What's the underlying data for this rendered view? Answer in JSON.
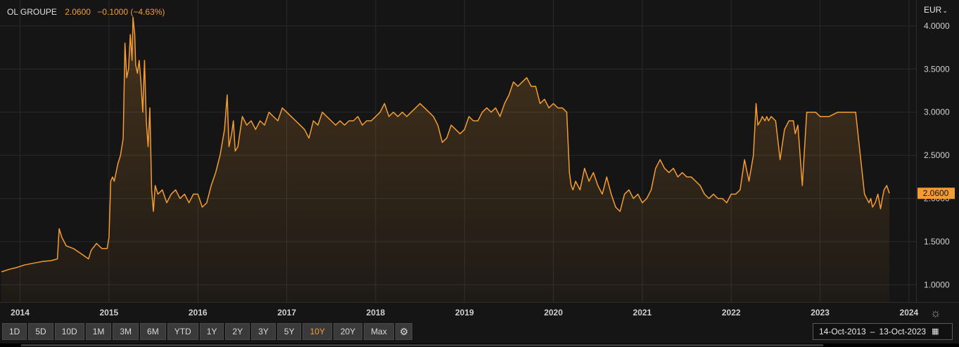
{
  "header": {
    "name": "OL GROUPE",
    "last": "2.0600",
    "change": "−0.1000 (−4.63%)"
  },
  "currency": "EUR",
  "toolbar": {
    "ranges": [
      "1D",
      "5D",
      "10D",
      "1M",
      "3M",
      "6M",
      "YTD",
      "1Y",
      "2Y",
      "3Y",
      "5Y",
      "10Y",
      "20Y",
      "Max"
    ],
    "active": "10Y"
  },
  "date_range": {
    "from": "14-Oct-2013",
    "separator": "–",
    "to": "13-Oct-2023"
  },
  "icons": {
    "settings": "gear-icon",
    "calendar": "calendar-icon",
    "currency_dropdown": "chevron-down-icon",
    "brightness": "sun-icon"
  },
  "colors": {
    "line": "#f39c35",
    "background": "#151515",
    "text": "#d0d0d0"
  },
  "chart_data": {
    "type": "area",
    "title": "",
    "xlabel": "",
    "ylabel": "",
    "grid": true,
    "xlim": [
      2013.79,
      2024.08
    ],
    "ylim": [
      0.8,
      4.3
    ],
    "x_ticks": [
      "2014",
      "2015",
      "2016",
      "2017",
      "2018",
      "2019",
      "2020",
      "2021",
      "2022",
      "2023",
      "2024"
    ],
    "y_ticks": [
      "1.0000",
      "1.5000",
      "2.0000",
      "2.5000",
      "3.0000",
      "3.5000",
      "4.0000"
    ],
    "last_value_label": "2.0600",
    "series": [
      {
        "x": [
          2013.79,
          2013.88,
          2013.96,
          2014.05,
          2014.15,
          2014.25,
          2014.35,
          2014.42,
          2014.44,
          2014.47,
          2014.52,
          2014.6,
          2014.7,
          2014.77,
          2014.8,
          2014.86,
          2014.92,
          2014.98,
          2015.0,
          2015.02,
          2015.04,
          2015.06,
          2015.1,
          2015.13,
          2015.16,
          2015.18,
          2015.2,
          2015.22,
          2015.24,
          2015.26,
          2015.27,
          2015.29,
          2015.3,
          2015.32,
          2015.34,
          2015.36,
          2015.38,
          2015.39,
          2015.4,
          2015.42,
          2015.44,
          2015.46,
          2015.48,
          2015.5,
          2015.52,
          2015.55,
          2015.6,
          2015.65,
          2015.7,
          2015.75,
          2015.8,
          2015.85,
          2015.9,
          2015.95,
          2016.0,
          2016.05,
          2016.1,
          2016.15,
          2016.2,
          2016.25,
          2016.3,
          2016.33,
          2016.35,
          2016.38,
          2016.4,
          2016.42,
          2016.45,
          2016.5,
          2016.55,
          2016.6,
          2016.65,
          2016.7,
          2016.75,
          2016.8,
          2016.85,
          2016.9,
          2016.95,
          2017.0,
          2017.05,
          2017.1,
          2017.15,
          2017.2,
          2017.25,
          2017.3,
          2017.35,
          2017.4,
          2017.45,
          2017.5,
          2017.55,
          2017.6,
          2017.65,
          2017.7,
          2017.75,
          2017.8,
          2017.85,
          2017.9,
          2017.95,
          2018.0,
          2018.05,
          2018.1,
          2018.15,
          2018.2,
          2018.25,
          2018.3,
          2018.35,
          2018.4,
          2018.45,
          2018.5,
          2018.55,
          2018.6,
          2018.65,
          2018.7,
          2018.75,
          2018.8,
          2018.85,
          2018.9,
          2018.95,
          2019.0,
          2019.05,
          2019.1,
          2019.15,
          2019.2,
          2019.25,
          2019.3,
          2019.35,
          2019.4,
          2019.45,
          2019.5,
          2019.55,
          2019.6,
          2019.65,
          2019.7,
          2019.75,
          2019.8,
          2019.85,
          2019.9,
          2019.95,
          2020.0,
          2020.05,
          2020.1,
          2020.15,
          2020.18,
          2020.2,
          2020.22,
          2020.25,
          2020.3,
          2020.35,
          2020.4,
          2020.45,
          2020.5,
          2020.55,
          2020.6,
          2020.65,
          2020.7,
          2020.75,
          2020.8,
          2020.85,
          2020.9,
          2020.95,
          2021.0,
          2021.05,
          2021.1,
          2021.15,
          2021.2,
          2021.25,
          2021.3,
          2021.35,
          2021.4,
          2021.45,
          2021.5,
          2021.55,
          2021.6,
          2021.65,
          2021.7,
          2021.75,
          2021.8,
          2021.85,
          2021.9,
          2021.95,
          2022.0,
          2022.05,
          2022.1,
          2022.15,
          2022.2,
          2022.25,
          2022.28,
          2022.3,
          2022.33,
          2022.35,
          2022.38,
          2022.4,
          2022.42,
          2022.45,
          2022.5,
          2022.55,
          2022.6,
          2022.65,
          2022.7,
          2022.72,
          2022.75,
          2022.8,
          2022.85,
          2022.88,
          2022.9,
          2022.92,
          2022.95,
          2023.0,
          2023.1,
          2023.2,
          2023.3,
          2023.4,
          2023.5,
          2023.55,
          2023.57,
          2023.59,
          2023.62,
          2023.65,
          2023.68,
          2023.7,
          2023.72,
          2023.75,
          2023.78
        ],
        "y": [
          1.15,
          1.18,
          1.2,
          1.23,
          1.25,
          1.27,
          1.28,
          1.3,
          1.65,
          1.55,
          1.45,
          1.42,
          1.35,
          1.3,
          1.4,
          1.48,
          1.42,
          1.42,
          1.55,
          2.2,
          2.25,
          2.2,
          2.4,
          2.5,
          2.7,
          3.8,
          3.4,
          3.5,
          3.9,
          3.6,
          4.1,
          3.9,
          3.55,
          3.45,
          3.6,
          3.35,
          3.0,
          3.3,
          3.6,
          2.9,
          2.6,
          3.05,
          2.1,
          1.85,
          2.15,
          2.05,
          2.1,
          1.95,
          2.05,
          2.1,
          2.0,
          2.05,
          1.95,
          2.05,
          2.05,
          1.9,
          1.95,
          2.15,
          2.3,
          2.5,
          2.8,
          3.2,
          2.6,
          2.75,
          2.9,
          2.55,
          2.6,
          2.95,
          2.85,
          2.9,
          2.8,
          2.9,
          2.85,
          3.0,
          2.95,
          2.9,
          3.05,
          3.0,
          2.95,
          2.9,
          2.85,
          2.8,
          2.7,
          2.9,
          2.85,
          3.0,
          2.95,
          2.9,
          2.85,
          2.9,
          2.85,
          2.9,
          2.9,
          2.95,
          2.85,
          2.9,
          2.9,
          2.95,
          3.0,
          3.1,
          2.95,
          3.0,
          2.95,
          3.0,
          2.95,
          3.0,
          3.05,
          3.1,
          3.05,
          3.0,
          2.95,
          2.85,
          2.65,
          2.7,
          2.85,
          2.8,
          2.75,
          2.8,
          2.95,
          2.9,
          2.9,
          3.0,
          3.05,
          3.0,
          3.05,
          2.95,
          3.1,
          3.2,
          3.35,
          3.3,
          3.35,
          3.4,
          3.3,
          3.3,
          3.1,
          3.15,
          3.05,
          3.1,
          3.05,
          3.05,
          3.0,
          2.3,
          2.15,
          2.1,
          2.2,
          2.1,
          2.35,
          2.2,
          2.3,
          2.15,
          2.05,
          2.25,
          2.05,
          1.9,
          1.85,
          2.05,
          2.1,
          2.0,
          2.05,
          1.95,
          2.0,
          2.1,
          2.35,
          2.45,
          2.35,
          2.3,
          2.35,
          2.25,
          2.3,
          2.25,
          2.25,
          2.2,
          2.15,
          2.05,
          2.0,
          2.05,
          2.0,
          2.0,
          1.95,
          2.05,
          2.05,
          2.1,
          2.45,
          2.2,
          2.5,
          3.1,
          2.85,
          2.9,
          2.95,
          2.9,
          2.95,
          2.9,
          2.95,
          2.9,
          2.45,
          2.8,
          2.9,
          2.9,
          2.75,
          2.85,
          2.15,
          3.0,
          3.0,
          3.0,
          3.0,
          3.0,
          2.95,
          2.95,
          3.0,
          3.0,
          3.0,
          2.05,
          1.95,
          2.0,
          1.9,
          1.95,
          2.05,
          1.88,
          2.0,
          2.1,
          2.15,
          2.06
        ]
      }
    ]
  }
}
